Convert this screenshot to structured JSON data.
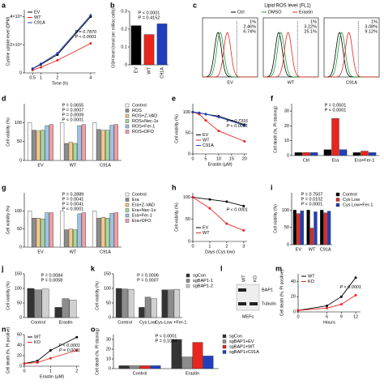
{
  "chart_data": [
    {
      "type": "line",
      "panel": "a",
      "ylabel": "Cystine uptake level (DPM)",
      "xlabel": "Time (h)",
      "x": [
        0.5,
        1,
        2,
        4
      ],
      "xlim": [
        0,
        4.3
      ],
      "xticks": [
        0.5,
        1,
        2,
        4
      ],
      "ylim": [
        0,
        45000
      ],
      "yticks": [
        0,
        {
          "value": 20000,
          "label": "2×10⁴"
        },
        {
          "value": 40000,
          "label": "4×10⁴"
        }
      ],
      "legend": "upper left",
      "series": [
        {
          "name": "EV",
          "color": "#000000",
          "values": [
            3000,
            6000,
            13000,
            40000
          ]
        },
        {
          "name": "WT",
          "color": "#e8251f",
          "values": [
            2000,
            4000,
            9000,
            21000
          ]
        },
        {
          "name": "C91A",
          "color": "#1f3fbf",
          "values": [
            3000,
            6500,
            14000,
            41000
          ]
        }
      ],
      "annotations": [
        "P = 0.7870",
        "P < 0.0001"
      ]
    },
    {
      "type": "bar",
      "panel": "b",
      "ylabel": "GSH level (nmol per million cells)",
      "categories": [
        "EV",
        "WT",
        "C91A"
      ],
      "values": [
        0.22,
        0.17,
        0.23
      ],
      "colors": [
        "#000000",
        "#e8251f",
        "#1f3fbf"
      ],
      "ylim": [
        0,
        0.3
      ],
      "yticks": [
        0,
        0.1,
        0.2,
        0.3
      ],
      "annotations": [
        "P < 0.0001",
        "P = 0.4152"
      ]
    },
    {
      "type": "flow",
      "panel": "c",
      "title": "Lipid ROS level (FL1)",
      "categories": [
        "EV",
        "WT",
        "C91A"
      ],
      "series": [
        {
          "name": "Ctrl",
          "color": "#000000",
          "values": [
            1,
            1,
            1
          ],
          "value_labels": [
            "1%",
            "1%",
            "1%"
          ]
        },
        {
          "name": "DMSO",
          "color": "#1a9a3a",
          "values": [
            2.46,
            3.22,
            3.08
          ],
          "value_labels": [
            "2.46%",
            "3.22%",
            "3.08%"
          ]
        },
        {
          "name": "Erastin",
          "color": "#e8251f",
          "values": [
            6.74,
            25.1,
            9.12
          ],
          "value_labels": [
            "6.74%",
            "25.1%",
            "9.12%"
          ]
        }
      ]
    },
    {
      "type": "bar",
      "panel": "d",
      "ylabel": "Cell viability (%)",
      "categories": [
        "EV",
        "WT",
        "C91A"
      ],
      "ylim": [
        0,
        150
      ],
      "yticks": [
        0,
        50,
        100
      ],
      "legend": "right",
      "series": [
        {
          "name": "Control",
          "color": "#ffffff",
          "values": [
            100,
            100,
            100
          ]
        },
        {
          "name": "ROS",
          "color": "#8c8c8c",
          "values": [
            80,
            45,
            82
          ]
        },
        {
          "name": "ROS+Z-VAD",
          "color": "#f5c98c",
          "values": [
            78,
            48,
            80
          ]
        },
        {
          "name": "ROS+Nec-1s",
          "color": "#a8d89a",
          "values": [
            80,
            45,
            80
          ]
        },
        {
          "name": "ROS+Fer-1",
          "color": "#9cc3e8",
          "values": [
            92,
            92,
            93
          ]
        },
        {
          "name": "ROS+DFO",
          "color": "#f2a0a8",
          "values": [
            95,
            95,
            95
          ]
        }
      ],
      "annotations": [
        "P = 0.0655",
        "P = 0.0007",
        "P = 0.0009",
        "P < 0.0001"
      ]
    },
    {
      "type": "line",
      "panel": "e",
      "ylabel": "Cell viability (%)",
      "xlabel": "Erastin (μM)",
      "x": [
        0,
        2.5,
        5,
        10,
        20
      ],
      "xlim": [
        0,
        21
      ],
      "xticks": [
        0,
        5,
        10,
        15,
        20
      ],
      "ylim": [
        0,
        120
      ],
      "yticks": [
        0,
        50,
        100
      ],
      "legend": "lower left",
      "series": [
        {
          "name": "EV",
          "color": "#000000",
          "values": [
            100,
            98,
            95,
            90,
            70
          ]
        },
        {
          "name": "WT",
          "color": "#e8251f",
          "values": [
            100,
            95,
            80,
            55,
            30
          ]
        },
        {
          "name": "C91A",
          "color": "#1f3fbf",
          "values": [
            100,
            98,
            95,
            88,
            68
          ]
        }
      ],
      "annotations": [
        "P = 0.7316",
        "P < 0.0001"
      ]
    },
    {
      "type": "bar",
      "panel": "f",
      "ylabel": "Cell death (%, PI staining)",
      "categories": [
        "Ctrl",
        "Era",
        "Era+Fer-1"
      ],
      "ylim": [
        0,
        35
      ],
      "yticks": [
        0,
        10,
        20,
        30
      ],
      "series": [
        {
          "color": "#000000",
          "values": [
            2,
            4,
            2
          ]
        },
        {
          "color": "#e8251f",
          "values": [
            2,
            25,
            3
          ]
        },
        {
          "color": "#1f3fbf",
          "values": [
            2,
            4,
            2
          ]
        }
      ],
      "annotations": [
        "P = 0.0501",
        "P < 0.0001"
      ]
    },
    {
      "type": "bar",
      "panel": "g",
      "ylabel": "Cell viability (%)",
      "categories": [
        "EV",
        "WT",
        "C91A"
      ],
      "ylim": [
        0,
        150
      ],
      "yticks": [
        0,
        50,
        100
      ],
      "legend": "right",
      "series": [
        {
          "name": "Control",
          "color": "#ffffff",
          "values": [
            100,
            100,
            100
          ]
        },
        {
          "name": "Era",
          "color": "#8c8c8c",
          "values": [
            80,
            48,
            80
          ]
        },
        {
          "name": "Era+Z-VAD",
          "color": "#f5c98c",
          "values": [
            80,
            50,
            82
          ]
        },
        {
          "name": "Era+Nec-1s",
          "color": "#a8d89a",
          "values": [
            78,
            48,
            80
          ]
        },
        {
          "name": "Era+Fer-1",
          "color": "#9cc3e8",
          "values": [
            95,
            92,
            93
          ]
        },
        {
          "name": "Era+DFO",
          "color": "#f2a0a8",
          "values": [
            95,
            95,
            95
          ]
        }
      ],
      "annotations": [
        "P = 0.2889",
        "P = 0.0041",
        "P = 0.0041",
        "P < 0.0001"
      ]
    },
    {
      "type": "line",
      "panel": "h",
      "ylabel": "Cell viability (%)",
      "xlabel": "Days (Cys low)",
      "x": [
        0,
        1,
        2,
        3
      ],
      "xlim": [
        0,
        3.2
      ],
      "xticks": [
        0,
        1,
        2,
        3
      ],
      "ylim": [
        0,
        110
      ],
      "yticks": [
        0,
        50,
        100
      ],
      "legend": "lower left",
      "series": [
        {
          "name": "EV",
          "color": "#000000",
          "values": [
            100,
            95,
            90,
            80
          ]
        },
        {
          "name": "WT",
          "color": "#e8251f",
          "values": [
            100,
            75,
            40,
            25
          ]
        }
      ],
      "annotations": [
        "P < 0.0001"
      ]
    },
    {
      "type": "bar",
      "panel": "i",
      "ylabel": "Cell viability (%)",
      "categories": [
        "EV",
        "WT",
        "C91A"
      ],
      "ylim": [
        0,
        150
      ],
      "yticks": [
        0,
        50,
        100
      ],
      "legend": "right",
      "series": [
        {
          "name": "Control",
          "color": "#000000",
          "values": [
            100,
            100,
            100
          ]
        },
        {
          "name": "Cys Low",
          "color": "#e8251f",
          "values": [
            90,
            48,
            92
          ]
        },
        {
          "name": "Cys Low+Fer-1",
          "color": "#1f3fbf",
          "values": [
            98,
            95,
            97
          ]
        }
      ],
      "annotations": [
        "P = 0.7507",
        "P = 0.0102",
        "P < 0.0001"
      ]
    },
    {
      "type": "bar",
      "panel": "j",
      "ylabel": "Cell viability (%)",
      "categories": [
        "Control",
        "Erastin"
      ],
      "ylim": [
        0,
        150
      ],
      "yticks": [
        0,
        50,
        100,
        150
      ],
      "series": [
        {
          "color": "#333333",
          "values": [
            100,
            35
          ]
        },
        {
          "color": "#8c8c8c",
          "values": [
            95,
            65
          ]
        },
        {
          "color": "#d0d0d0",
          "values": [
            98,
            60
          ]
        }
      ],
      "annotations": [
        "P = 0.0084",
        "P = 0.0058"
      ]
    },
    {
      "type": "bar",
      "panel": "k",
      "ylabel": "Cell viability (%)",
      "categories": [
        "Control",
        "Cys Low",
        "Cys-Low +Fer-1"
      ],
      "ylim": [
        0,
        150
      ],
      "yticks": [
        0,
        50,
        100,
        150
      ],
      "legend": "right",
      "series": [
        {
          "name": "sgCon",
          "color": "#333333",
          "values": [
            100,
            35,
            95
          ]
        },
        {
          "name": "sgBAP1-1",
          "color": "#8c8c8c",
          "values": [
            98,
            70,
            95
          ]
        },
        {
          "name": "sgBAP1-2",
          "color": "#d0d0d0",
          "values": [
            97,
            65,
            97
          ]
        }
      ],
      "annotations": [
        "P = 0.0006",
        "P = 0.0007"
      ]
    },
    {
      "type": "blot",
      "panel": "l",
      "lanes": [
        "WT",
        "KO"
      ],
      "bands": [
        "BAP1",
        "Tubulin"
      ],
      "cells": "MEFs"
    },
    {
      "type": "line",
      "panel": "m",
      "ylabel": "Cell death (%, PI positive)",
      "xlabel": "Hours",
      "x": [
        0,
        6,
        9,
        12
      ],
      "xlim": [
        0,
        13
      ],
      "xticks": [
        0,
        6,
        9,
        12
      ],
      "ylim": [
        0,
        50
      ],
      "yticks": [
        0,
        20,
        40
      ],
      "legend": "upper left",
      "series": [
        {
          "name": "WT",
          "color": "#000000",
          "values": [
            2,
            8,
            20,
            45
          ]
        },
        {
          "name": "KO",
          "color": "#e8251f",
          "values": [
            2,
            5,
            10,
            22
          ]
        }
      ],
      "annotations": [
        "P < 0.0001"
      ]
    },
    {
      "type": "line",
      "panel": "n",
      "ylabel": "Cell death (%, PI positive)",
      "xlabel": "Erastin (μM)",
      "x": [
        0,
        0.5,
        1,
        2
      ],
      "xlim": [
        0,
        2.1
      ],
      "xticks": [
        0,
        1,
        2
      ],
      "ylim": [
        0,
        60
      ],
      "yticks": [
        0,
        20,
        40,
        60
      ],
      "legend": "upper left",
      "series": [
        {
          "name": "WT",
          "color": "#000000",
          "values": [
            5,
            10,
            30,
            55
          ]
        },
        {
          "name": "KO",
          "color": "#e8251f",
          "values": [
            5,
            7,
            15,
            30
          ]
        }
      ],
      "annotations": [
        "P < 0.0001",
        "P = 0.0011"
      ]
    },
    {
      "type": "bar",
      "panel": "o",
      "ylabel": "Cell death (%, PI staining)",
      "categories": [
        "Control",
        "Erastin"
      ],
      "ylim": [
        0,
        35
      ],
      "yticks": [
        0,
        10,
        20,
        30
      ],
      "legend": "right",
      "series": [
        {
          "name": "sgCon",
          "color": "#333333",
          "values": [
            3,
            30
          ]
        },
        {
          "name": "sgBAP1+EV",
          "color": "#8c8c8c",
          "values": [
            3,
            12
          ]
        },
        {
          "name": "sgBAP1+WT",
          "color": "#e8251f",
          "values": [
            3,
            27
          ]
        },
        {
          "name": "sgBAP1+C91A",
          "color": "#1f3fbf",
          "values": [
            3,
            13
          ]
        }
      ],
      "annotations": [
        "P < 0.0001",
        "P = 0.1084"
      ]
    }
  ]
}
